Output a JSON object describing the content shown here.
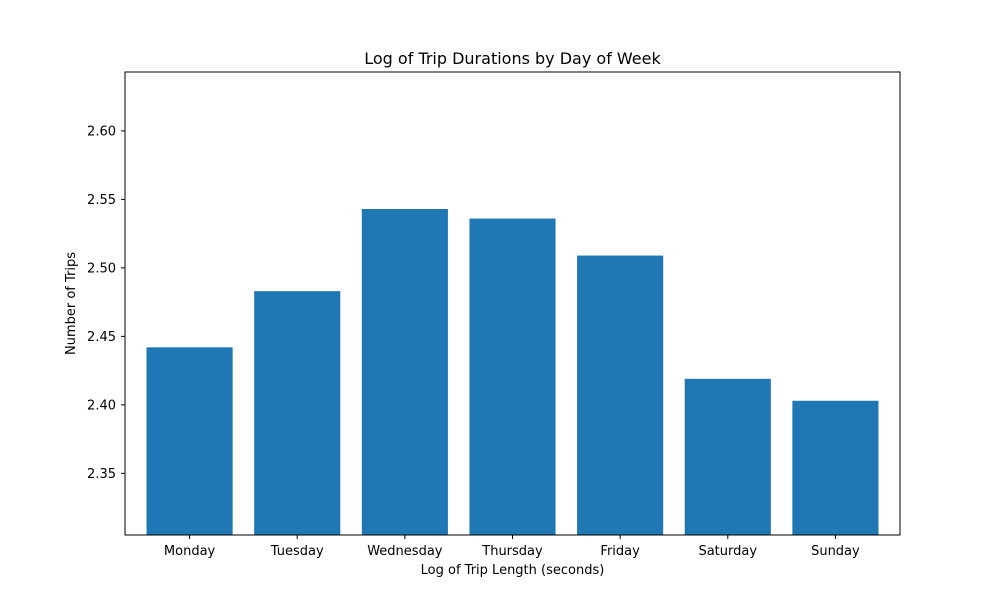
{
  "chart_data": {
    "type": "bar",
    "title": "Log of Trip Durations by Day of Week",
    "xlabel": "Log of Trip Length (seconds)",
    "ylabel": "Number of Trips",
    "categories": [
      "Monday",
      "Tuesday",
      "Wednesday",
      "Thursday",
      "Friday",
      "Saturday",
      "Sunday"
    ],
    "values": [
      2.442,
      2.483,
      2.543,
      2.536,
      2.509,
      2.419,
      2.403
    ],
    "ylim": [
      2.305,
      2.643
    ],
    "yticks": [
      "2.35",
      "2.40",
      "2.45",
      "2.50",
      "2.55",
      "2.60"
    ],
    "bar_color": "#1f77b4",
    "grid": false,
    "legend": "none"
  }
}
